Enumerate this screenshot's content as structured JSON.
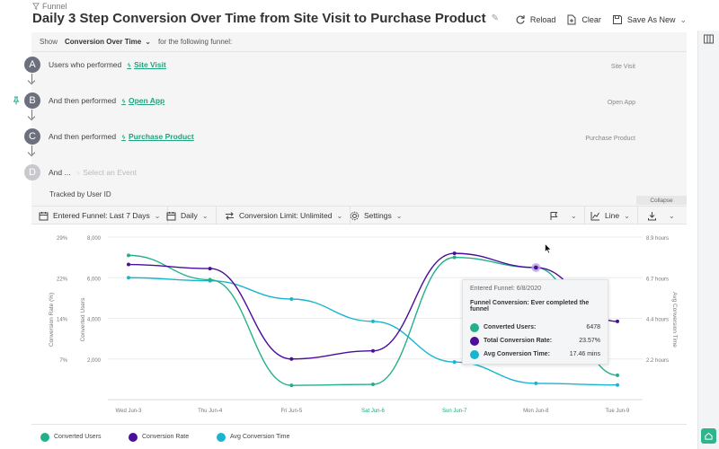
{
  "breadcrumb": {
    "icon": "filter-icon",
    "label": "Funnel"
  },
  "title": "Daily 3 Step Conversion Over Time from Site Visit to Purchase Product",
  "header_actions": {
    "reload": "Reload",
    "clear": "Clear",
    "save_as_new": "Save As New"
  },
  "show_row": {
    "prefix": "Show",
    "selected": "Conversion Over Time",
    "suffix": "for the following funnel:"
  },
  "steps": [
    {
      "letter": "A",
      "prefix": "Users who performed",
      "event": "Site Visit",
      "right_label": "Site Visit"
    },
    {
      "letter": "B",
      "prefix": "And then performed",
      "event": "Open App",
      "right_label": "Open App"
    },
    {
      "letter": "C",
      "prefix": "And then performed",
      "event": "Purchase Product",
      "right_label": "Purchase Product"
    },
    {
      "letter": "D",
      "prefix": "And ...",
      "event": "Select an Event",
      "right_label": ""
    }
  ],
  "tracked_by": "Tracked by User ID",
  "collapse_label": "Collapse",
  "toolbar": {
    "entered_funnel": "Entered Funnel: Last 7 Days",
    "interval": "Daily",
    "conversion_limit": "Conversion Limit: Unlimited",
    "settings": "Settings",
    "chart_type": "Line"
  },
  "tooltip": {
    "date": "Entered Funnel: 6/8/2020",
    "subtitle": "Funnel Conversion: Ever completed the funnel",
    "rows": [
      {
        "label": "Converted Users:",
        "value": "6478"
      },
      {
        "label": "Total Conversion Rate:",
        "value": "23.57%"
      },
      {
        "label": "Avg Conversion Time:",
        "value": "17.46 mins"
      }
    ]
  },
  "legend": [
    "Converted Users",
    "Conversion Rate",
    "Avg Conversion Time"
  ],
  "colors": {
    "converted_users": "#22b08a",
    "conversion_rate": "#4a0d9c",
    "avg_time": "#19b5cf",
    "accent": "#1ea57d"
  },
  "chart_data": {
    "type": "line",
    "categories": [
      "Wed Jun-3",
      "Thu Jun-4",
      "Fri Jun-5",
      "Sat Jun-6",
      "Sun Jun-7",
      "Mon Jun-8",
      "Tue Jun-9"
    ],
    "weekend_categories": [
      "Sat Jun-6",
      "Sun Jun-7"
    ],
    "left_axis_rate": {
      "label": "Conversion Rate (%)",
      "ticks": [
        "29%",
        "22%",
        "14%",
        "7%"
      ]
    },
    "left_axis_users": {
      "label": "Converted Users",
      "ticks": [
        "8,000",
        "6,000",
        "4,000",
        "2,000"
      ],
      "ylim": [
        0,
        8000
      ]
    },
    "right_axis": {
      "label": "Avg Conversion Time",
      "ticks": [
        "8.9 hours",
        "6.7 hours",
        "4.4 hours",
        "2.2 hours"
      ]
    },
    "series": [
      {
        "name": "Converted Users",
        "axis": "users",
        "values": [
          7100,
          5900,
          700,
          750,
          7000,
          6500,
          1200
        ]
      },
      {
        "name": "Conversion Rate",
        "axis": "users",
        "values": [
          6650,
          6450,
          2000,
          2400,
          7200,
          6500,
          3850
        ]
      },
      {
        "name": "Avg Conversion Time",
        "axis": "users",
        "values": [
          6000,
          5850,
          4950,
          3850,
          1850,
          800,
          720
        ]
      }
    ],
    "highlight_category": "Mon Jun-8"
  }
}
